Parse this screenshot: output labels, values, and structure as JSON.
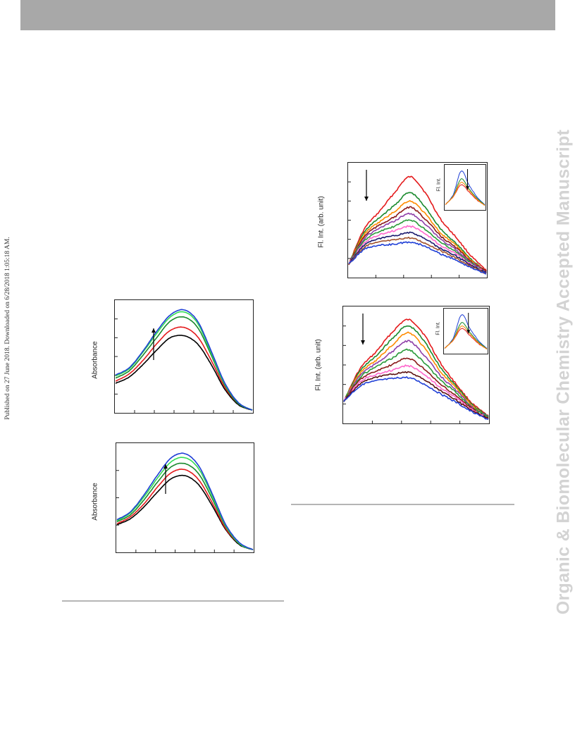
{
  "page": {
    "journal_watermark": "Organic & Biomolecular Chemistry Accepted Manuscript",
    "published_note": "Published on 27 June 2018. Downloaded on 6/28/2018 1:05:18 AM."
  },
  "colors": {
    "header_bar": "#a8a8a8",
    "watermark": "#d3d3d3",
    "rule": "#b5b5b5"
  },
  "chart_data": [
    {
      "type": "line",
      "panel": "absorbance-top",
      "ylabel": "Absorbance",
      "arrow": "up",
      "series": [
        {
          "color": "#000000",
          "values": [
            0.28,
            0.34,
            0.46,
            0.6,
            0.72,
            0.74,
            0.66,
            0.46,
            0.22,
            0.07,
            0.02
          ]
        },
        {
          "color": "#e41a1c",
          "values": [
            0.3,
            0.37,
            0.5,
            0.66,
            0.79,
            0.82,
            0.73,
            0.5,
            0.24,
            0.08,
            0.02
          ]
        },
        {
          "color": "#1a8a2e",
          "values": [
            0.33,
            0.4,
            0.55,
            0.72,
            0.88,
            0.92,
            0.82,
            0.55,
            0.26,
            0.08,
            0.02
          ]
        },
        {
          "color": "#33dd55",
          "values": [
            0.35,
            0.42,
            0.58,
            0.76,
            0.92,
            0.97,
            0.86,
            0.57,
            0.27,
            0.09,
            0.02
          ]
        },
        {
          "color": "#1f3fd6",
          "values": [
            0.36,
            0.43,
            0.59,
            0.78,
            0.94,
            0.99,
            0.88,
            0.59,
            0.28,
            0.09,
            0.02
          ]
        }
      ],
      "xlim": [
        0,
        10
      ],
      "ylim": [
        0,
        1.05
      ]
    },
    {
      "type": "line",
      "panel": "absorbance-bottom",
      "ylabel": "Absorbance",
      "arrow": "up",
      "series": [
        {
          "color": "#000000",
          "values": [
            0.27,
            0.33,
            0.45,
            0.6,
            0.73,
            0.76,
            0.67,
            0.46,
            0.22,
            0.07,
            0.02
          ]
        },
        {
          "color": "#e41a1c",
          "values": [
            0.28,
            0.35,
            0.48,
            0.65,
            0.79,
            0.82,
            0.72,
            0.49,
            0.23,
            0.08,
            0.02
          ]
        },
        {
          "color": "#1a8a2e",
          "values": [
            0.3,
            0.37,
            0.52,
            0.7,
            0.85,
            0.88,
            0.78,
            0.53,
            0.25,
            0.08,
            0.02
          ]
        },
        {
          "color": "#33dd55",
          "values": [
            0.31,
            0.39,
            0.55,
            0.74,
            0.9,
            0.94,
            0.83,
            0.56,
            0.26,
            0.08,
            0.02
          ]
        },
        {
          "color": "#1f3fd6",
          "values": [
            0.32,
            0.4,
            0.57,
            0.77,
            0.94,
            0.98,
            0.86,
            0.58,
            0.27,
            0.09,
            0.02
          ]
        }
      ],
      "xlim": [
        0,
        10
      ],
      "ylim": [
        0,
        1.05
      ]
    },
    {
      "type": "line",
      "panel": "fluorescence-top",
      "ylabel": "Fl. Int. (arb. unit)",
      "arrow": "down",
      "inset": {
        "ylabel": "Fl. Int.",
        "arrow": "down"
      },
      "series": [
        {
          "color": "#e41a1c",
          "values": [
            0.12,
            0.45,
            0.62,
            0.8,
            0.95,
            0.8,
            0.55,
            0.38,
            0.2,
            0.06
          ]
        },
        {
          "color": "#1a8a2e",
          "values": [
            0.12,
            0.42,
            0.56,
            0.68,
            0.8,
            0.66,
            0.46,
            0.32,
            0.17,
            0.05
          ]
        },
        {
          "color": "#ff8c00",
          "values": [
            0.12,
            0.4,
            0.52,
            0.62,
            0.72,
            0.6,
            0.42,
            0.3,
            0.16,
            0.05
          ]
        },
        {
          "color": "#8b1a1a",
          "values": [
            0.12,
            0.38,
            0.49,
            0.57,
            0.66,
            0.55,
            0.39,
            0.28,
            0.15,
            0.05
          ]
        },
        {
          "color": "#8e3fa8",
          "values": [
            0.12,
            0.36,
            0.46,
            0.53,
            0.6,
            0.5,
            0.36,
            0.26,
            0.14,
            0.04
          ]
        },
        {
          "color": "#2a9a3a",
          "values": [
            0.12,
            0.34,
            0.43,
            0.48,
            0.54,
            0.45,
            0.33,
            0.24,
            0.13,
            0.04
          ]
        },
        {
          "color": "#ff66cc",
          "values": [
            0.12,
            0.32,
            0.4,
            0.44,
            0.48,
            0.41,
            0.3,
            0.22,
            0.12,
            0.04
          ]
        },
        {
          "color": "#1a1a6e",
          "values": [
            0.12,
            0.3,
            0.36,
            0.39,
            0.42,
            0.36,
            0.27,
            0.2,
            0.11,
            0.04
          ]
        },
        {
          "color": "#a0522d",
          "values": [
            0.12,
            0.28,
            0.33,
            0.35,
            0.37,
            0.32,
            0.25,
            0.18,
            0.1,
            0.03
          ]
        },
        {
          "color": "#1f3fd6",
          "values": [
            0.12,
            0.26,
            0.3,
            0.31,
            0.33,
            0.29,
            0.22,
            0.16,
            0.09,
            0.03
          ]
        }
      ],
      "xlim": [
        0,
        9
      ],
      "ylim": [
        0,
        1.05
      ]
    },
    {
      "type": "line",
      "panel": "fluorescence-bottom",
      "ylabel": "Fl. Int. (arb. unit)",
      "arrow": "down",
      "inset": {
        "ylabel": "Fl. Int.",
        "arrow": "down"
      },
      "series": [
        {
          "color": "#e41a1c",
          "values": [
            0.2,
            0.5,
            0.66,
            0.84,
            0.96,
            0.82,
            0.56,
            0.36,
            0.18,
            0.06
          ]
        },
        {
          "color": "#1a8a2e",
          "values": [
            0.2,
            0.48,
            0.62,
            0.78,
            0.9,
            0.76,
            0.52,
            0.34,
            0.17,
            0.06
          ]
        },
        {
          "color": "#ff8c00",
          "values": [
            0.2,
            0.46,
            0.58,
            0.72,
            0.84,
            0.7,
            0.48,
            0.32,
            0.16,
            0.05
          ]
        },
        {
          "color": "#8e3fa8",
          "values": [
            0.2,
            0.44,
            0.55,
            0.66,
            0.76,
            0.63,
            0.44,
            0.3,
            0.15,
            0.05
          ]
        },
        {
          "color": "#2a9a3a",
          "values": [
            0.2,
            0.42,
            0.52,
            0.6,
            0.68,
            0.56,
            0.4,
            0.28,
            0.14,
            0.05
          ]
        },
        {
          "color": "#8b1a1a",
          "values": [
            0.2,
            0.4,
            0.48,
            0.54,
            0.6,
            0.5,
            0.36,
            0.25,
            0.13,
            0.04
          ]
        },
        {
          "color": "#ff66cc",
          "values": [
            0.2,
            0.38,
            0.45,
            0.49,
            0.53,
            0.45,
            0.33,
            0.23,
            0.12,
            0.04
          ]
        },
        {
          "color": "#5a1010",
          "values": [
            0.2,
            0.36,
            0.42,
            0.45,
            0.47,
            0.4,
            0.3,
            0.21,
            0.11,
            0.04
          ]
        },
        {
          "color": "#1f3fd6",
          "values": [
            0.2,
            0.34,
            0.39,
            0.41,
            0.42,
            0.36,
            0.27,
            0.19,
            0.1,
            0.03
          ]
        }
      ],
      "xlim": [
        0,
        9
      ],
      "ylim": [
        0,
        1.05
      ]
    }
  ]
}
